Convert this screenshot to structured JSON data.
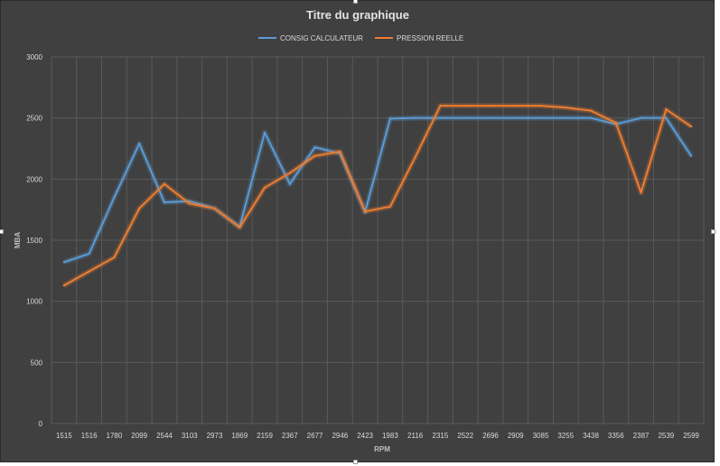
{
  "chart_data": {
    "type": "line",
    "title": "Titre du graphique",
    "xlabel": "RPM",
    "ylabel": "MBA",
    "ylim": [
      0,
      3000
    ],
    "yticks": [
      0,
      500,
      1000,
      1500,
      2000,
      2500,
      3000
    ],
    "grid": true,
    "legend_position": "top",
    "categories": [
      "1515",
      "1516",
      "1780",
      "2099",
      "2544",
      "3103",
      "2973",
      "1869",
      "2159",
      "2367",
      "2677",
      "2946",
      "2423",
      "1983",
      "2116",
      "2315",
      "2522",
      "2696",
      "2909",
      "3085",
      "3255",
      "3438",
      "3356",
      "2387",
      "2539",
      "2599"
    ],
    "series": [
      {
        "name": "CONSIG CALCULATEUR",
        "color": "#5b9bd5",
        "values": [
          1320,
          1390,
          1850,
          2290,
          1810,
          1820,
          1760,
          1610,
          2380,
          1960,
          2260,
          2210,
          1730,
          2495,
          2500,
          2500,
          2500,
          2500,
          2500,
          2500,
          2500,
          2500,
          2450,
          2500,
          2500,
          2190
        ]
      },
      {
        "name": "PRESSION REELLE",
        "color": "#ed7d31",
        "values": [
          1130,
          1245,
          1360,
          1760,
          1960,
          1800,
          1760,
          1605,
          1930,
          2050,
          2190,
          2225,
          1735,
          1775,
          2180,
          2600,
          2600,
          2600,
          2600,
          2600,
          2585,
          2560,
          2460,
          1890,
          2570,
          2430
        ]
      }
    ]
  }
}
